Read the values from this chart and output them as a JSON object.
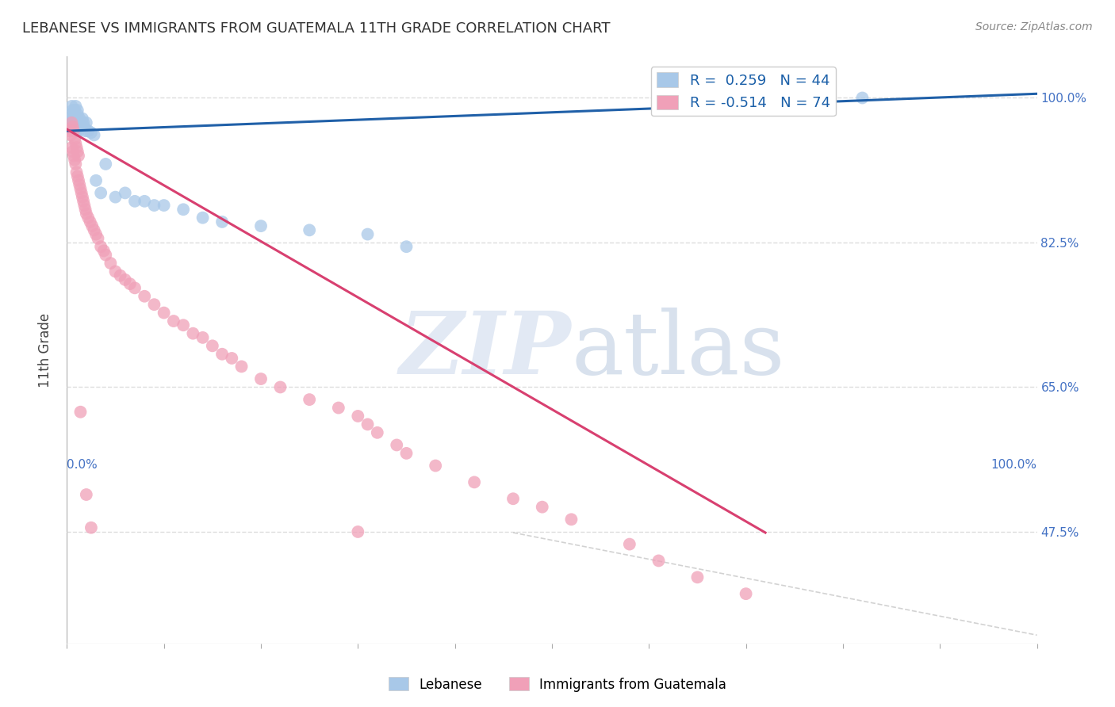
{
  "title": "LEBANESE VS IMMIGRANTS FROM GUATEMALA 11TH GRADE CORRELATION CHART",
  "source": "Source: ZipAtlas.com",
  "ylabel": "11th Grade",
  "ytick_labels": [
    "100.0%",
    "82.5%",
    "65.0%",
    "47.5%"
  ],
  "ytick_values": [
    1.0,
    0.825,
    0.65,
    0.475
  ],
  "blue_color": "#A8C8E8",
  "pink_color": "#F0A0B8",
  "blue_line_color": "#2060A8",
  "pink_line_color": "#D84070",
  "ref_line_color": "#C0C0C0",
  "grid_color": "#DDDDDD",
  "blue_scatter_x": [
    0.003,
    0.004,
    0.005,
    0.005,
    0.006,
    0.007,
    0.007,
    0.008,
    0.008,
    0.009,
    0.009,
    0.01,
    0.01,
    0.011,
    0.011,
    0.012,
    0.013,
    0.014,
    0.015,
    0.016,
    0.017,
    0.018,
    0.019,
    0.02,
    0.022,
    0.025,
    0.028,
    0.03,
    0.035,
    0.04,
    0.05,
    0.06,
    0.07,
    0.08,
    0.09,
    0.1,
    0.12,
    0.14,
    0.16,
    0.2,
    0.25,
    0.31,
    0.35,
    0.82
  ],
  "blue_scatter_y": [
    0.975,
    0.98,
    0.968,
    0.99,
    0.985,
    0.97,
    0.975,
    0.965,
    0.985,
    0.97,
    0.99,
    0.975,
    0.96,
    0.98,
    0.985,
    0.96,
    0.975,
    0.97,
    0.965,
    0.975,
    0.97,
    0.965,
    0.96,
    0.97,
    0.96,
    0.958,
    0.955,
    0.9,
    0.885,
    0.92,
    0.88,
    0.885,
    0.875,
    0.875,
    0.87,
    0.87,
    0.865,
    0.855,
    0.85,
    0.845,
    0.84,
    0.835,
    0.82,
    1.0
  ],
  "pink_scatter_x": [
    0.003,
    0.004,
    0.005,
    0.005,
    0.006,
    0.006,
    0.007,
    0.007,
    0.008,
    0.008,
    0.009,
    0.009,
    0.01,
    0.01,
    0.011,
    0.011,
    0.012,
    0.012,
    0.013,
    0.014,
    0.015,
    0.016,
    0.017,
    0.018,
    0.019,
    0.02,
    0.022,
    0.024,
    0.026,
    0.028,
    0.03,
    0.032,
    0.035,
    0.038,
    0.04,
    0.045,
    0.05,
    0.055,
    0.06,
    0.065,
    0.07,
    0.08,
    0.09,
    0.1,
    0.11,
    0.12,
    0.13,
    0.14,
    0.15,
    0.16,
    0.17,
    0.18,
    0.2,
    0.22,
    0.25,
    0.28,
    0.3,
    0.31,
    0.32,
    0.34,
    0.35,
    0.38,
    0.42,
    0.46,
    0.49,
    0.52,
    0.58,
    0.61,
    0.65,
    0.7,
    0.014,
    0.02,
    0.025,
    0.3
  ],
  "pink_scatter_y": [
    0.96,
    0.955,
    0.94,
    0.97,
    0.935,
    0.965,
    0.93,
    0.96,
    0.925,
    0.95,
    0.92,
    0.945,
    0.91,
    0.94,
    0.905,
    0.935,
    0.9,
    0.93,
    0.895,
    0.89,
    0.885,
    0.88,
    0.875,
    0.87,
    0.865,
    0.86,
    0.855,
    0.85,
    0.845,
    0.84,
    0.835,
    0.83,
    0.82,
    0.815,
    0.81,
    0.8,
    0.79,
    0.785,
    0.78,
    0.775,
    0.77,
    0.76,
    0.75,
    0.74,
    0.73,
    0.725,
    0.715,
    0.71,
    0.7,
    0.69,
    0.685,
    0.675,
    0.66,
    0.65,
    0.635,
    0.625,
    0.615,
    0.605,
    0.595,
    0.58,
    0.57,
    0.555,
    0.535,
    0.515,
    0.505,
    0.49,
    0.46,
    0.44,
    0.42,
    0.4,
    0.62,
    0.52,
    0.48,
    0.475
  ],
  "blue_line_x": [
    0.0,
    1.0
  ],
  "blue_line_y": [
    0.96,
    1.005
  ],
  "pink_line_x": [
    0.0,
    0.72
  ],
  "pink_line_y": [
    0.962,
    0.474
  ],
  "ref_line_x": [
    0.46,
    1.0
  ],
  "ref_line_y": [
    0.474,
    0.35
  ],
  "xlim": [
    0.0,
    1.0
  ],
  "ylim": [
    0.34,
    1.05
  ]
}
